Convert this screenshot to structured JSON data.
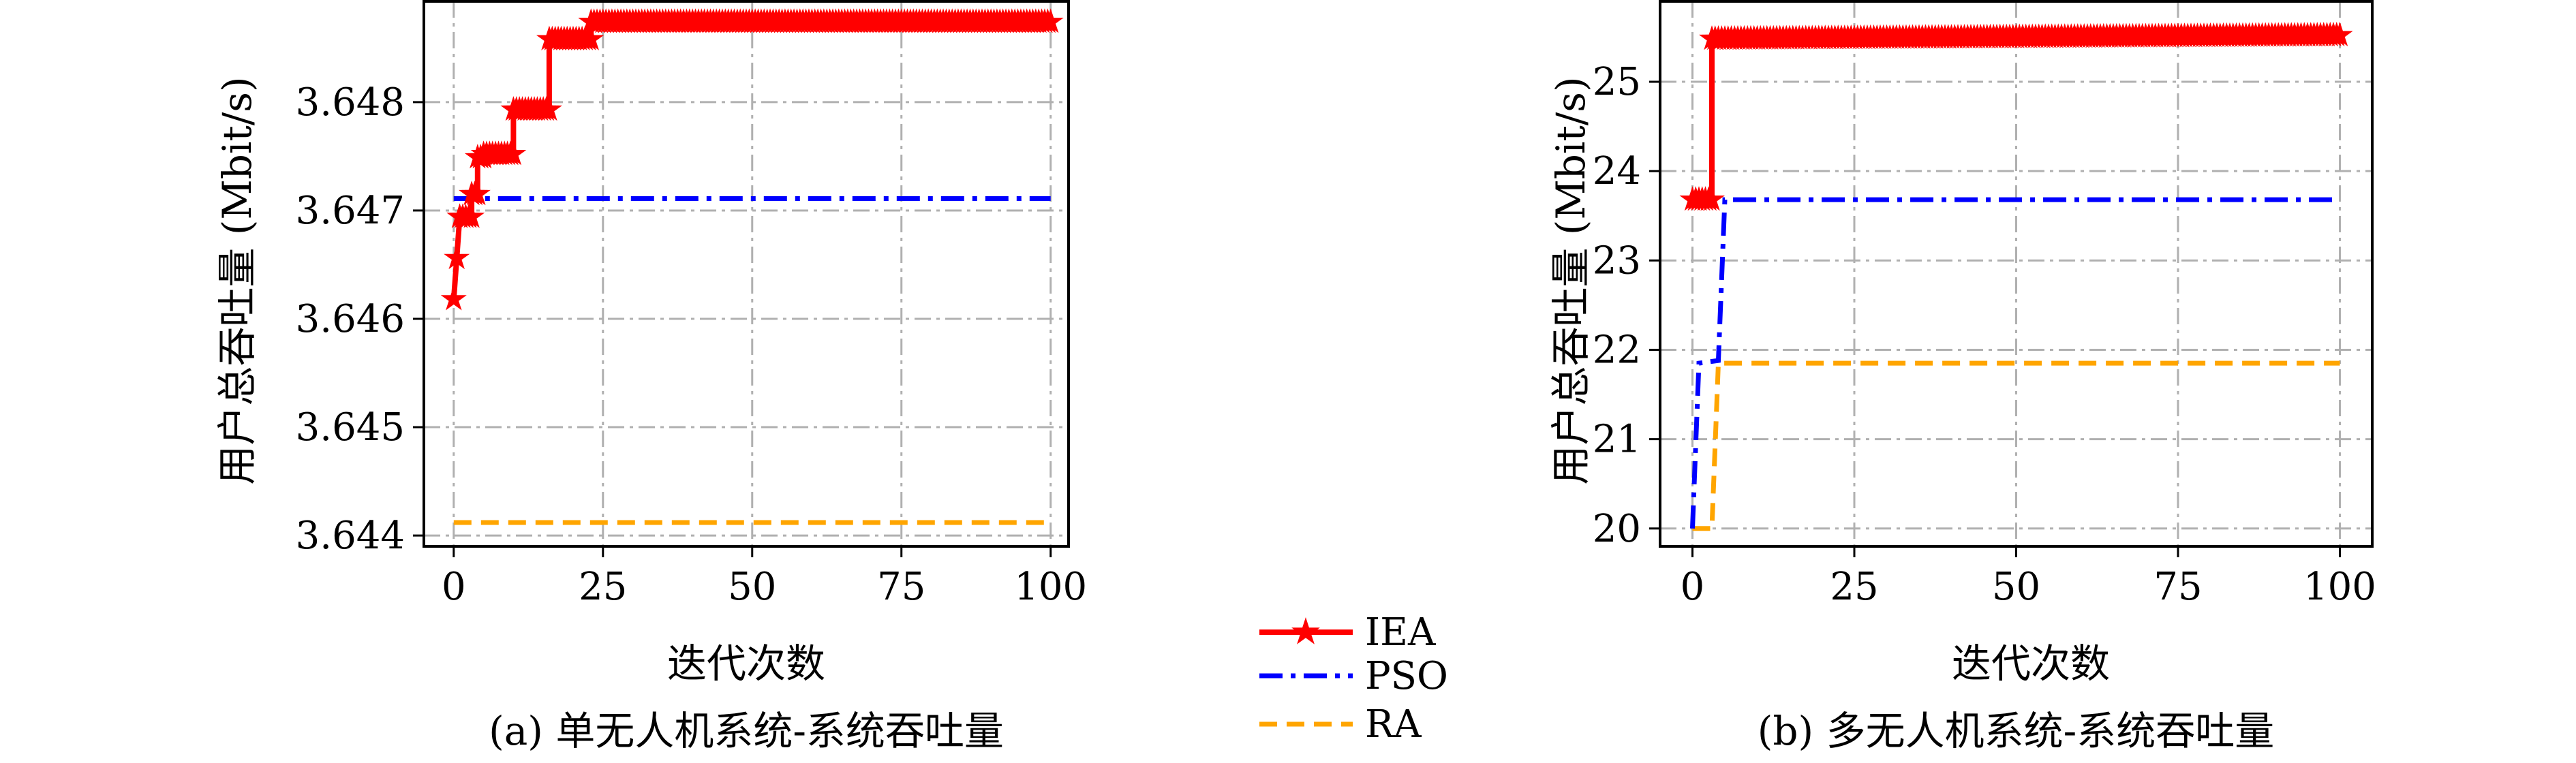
{
  "chart_data": [
    {
      "type": "line",
      "caption": "(a) 单无人机系统-系统吞吐量",
      "xlabel": "迭代次数",
      "ylabel": "用户总吞吐量 (Mbit/s)",
      "xlim": [
        -5,
        103
      ],
      "ylim": [
        3.6439,
        3.64893
      ],
      "xticks": [
        0,
        25,
        50,
        75,
        100
      ],
      "yticks": [
        3.644,
        3.645,
        3.646,
        3.647,
        3.648
      ],
      "ytick_labels": [
        "3.644",
        "3.645",
        "3.646",
        "3.647",
        "3.648"
      ],
      "grid": true,
      "series": [
        {
          "name": "IEA",
          "color": "#ff0000",
          "style": "solid-star",
          "points": [
            [
              0,
              3.64618
            ],
            [
              1,
              3.64694
            ],
            [
              3,
              3.64694
            ],
            [
              3,
              3.64715
            ],
            [
              4,
              3.64715
            ],
            [
              4,
              3.64749
            ],
            [
              5,
              3.64749
            ],
            [
              5,
              3.64752
            ],
            [
              10,
              3.64752
            ],
            [
              10,
              3.64793
            ],
            [
              16,
              3.64793
            ],
            [
              16,
              3.64858
            ],
            [
              23,
              3.64858
            ],
            [
              23,
              3.64874
            ],
            [
              100,
              3.64874
            ]
          ]
        },
        {
          "name": "PSO",
          "color": "#0000ff",
          "style": "dashdot",
          "points": [
            [
              0,
              3.64711
            ],
            [
              100,
              3.64711
            ]
          ]
        },
        {
          "name": "RA",
          "color": "#ffa500",
          "style": "dashed",
          "points": [
            [
              0,
              3.64412
            ],
            [
              100,
              3.64412
            ]
          ]
        }
      ]
    },
    {
      "type": "line",
      "caption": "(b) 多无人机系统-系统吞吐量",
      "xlabel": "迭代次数",
      "ylabel": "用户总吞吐量 (Mbit/s)",
      "xlim": [
        -5,
        105
      ],
      "ylim": [
        19.8,
        25.9
      ],
      "xticks": [
        0,
        25,
        50,
        75,
        100
      ],
      "yticks": [
        20,
        21,
        22,
        23,
        24,
        25
      ],
      "ytick_labels": [
        "20",
        "21",
        "22",
        "23",
        "24",
        "25"
      ],
      "grid": true,
      "series": [
        {
          "name": "IEA",
          "color": "#ff0000",
          "style": "solid-star",
          "points": [
            [
              0,
              23.68
            ],
            [
              3,
              23.68
            ],
            [
              3,
              25.48
            ],
            [
              100,
              25.52
            ]
          ]
        },
        {
          "name": "PSO",
          "color": "#0000ff",
          "style": "dashdot",
          "points": [
            [
              0,
              20.0
            ],
            [
              1,
              21.85
            ],
            [
              4,
              21.88
            ],
            [
              5,
              23.68
            ],
            [
              100,
              23.68
            ]
          ]
        },
        {
          "name": "RA",
          "color": "#ffa500",
          "style": "dashed",
          "points": [
            [
              0,
              20.0
            ],
            [
              3,
              20.0
            ],
            [
              4,
              21.85
            ],
            [
              100,
              21.85
            ]
          ]
        }
      ]
    }
  ],
  "legend": {
    "position": "bottom-center",
    "items": [
      {
        "label": "IEA",
        "color": "#ff0000",
        "style": "solid-star"
      },
      {
        "label": "PSO",
        "color": "#0000ff",
        "style": "dashdot"
      },
      {
        "label": "RA",
        "color": "#ffa500",
        "style": "dashed"
      }
    ]
  }
}
